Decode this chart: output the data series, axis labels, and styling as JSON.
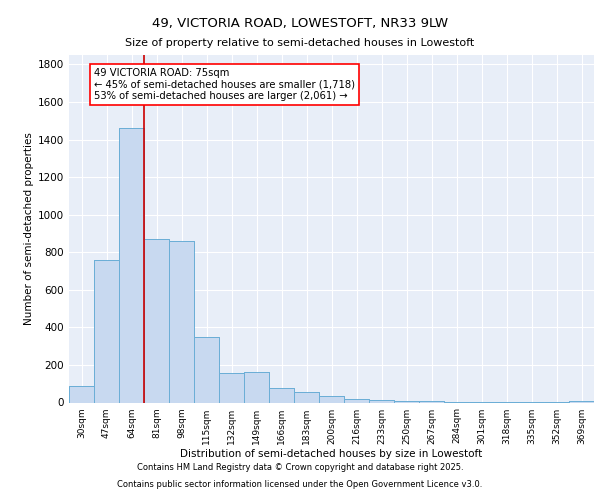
{
  "title1": "49, VICTORIA ROAD, LOWESTOFT, NR33 9LW",
  "title2": "Size of property relative to semi-detached houses in Lowestoft",
  "xlabel": "Distribution of semi-detached houses by size in Lowestoft",
  "ylabel": "Number of semi-detached properties",
  "categories": [
    "30sqm",
    "47sqm",
    "64sqm",
    "81sqm",
    "98sqm",
    "115sqm",
    "132sqm",
    "149sqm",
    "166sqm",
    "183sqm",
    "200sqm",
    "216sqm",
    "233sqm",
    "250sqm",
    "267sqm",
    "284sqm",
    "301sqm",
    "318sqm",
    "335sqm",
    "352sqm",
    "369sqm"
  ],
  "values": [
    90,
    760,
    1460,
    870,
    860,
    350,
    155,
    165,
    75,
    55,
    35,
    20,
    15,
    10,
    8,
    5,
    3,
    2,
    2,
    2,
    10
  ],
  "bar_color": "#c8d9f0",
  "bar_edge_color": "#6baed6",
  "background_color": "#e8eef8",
  "grid_color": "#ffffff",
  "annotation_text": "49 VICTORIA ROAD: 75sqm\n← 45% of semi-detached houses are smaller (1,718)\n53% of semi-detached houses are larger (2,061) →",
  "footer1": "Contains HM Land Registry data © Crown copyright and database right 2025.",
  "footer2": "Contains public sector information licensed under the Open Government Licence v3.0.",
  "ylim": [
    0,
    1850
  ],
  "yticks": [
    0,
    200,
    400,
    600,
    800,
    1000,
    1200,
    1400,
    1600,
    1800
  ]
}
